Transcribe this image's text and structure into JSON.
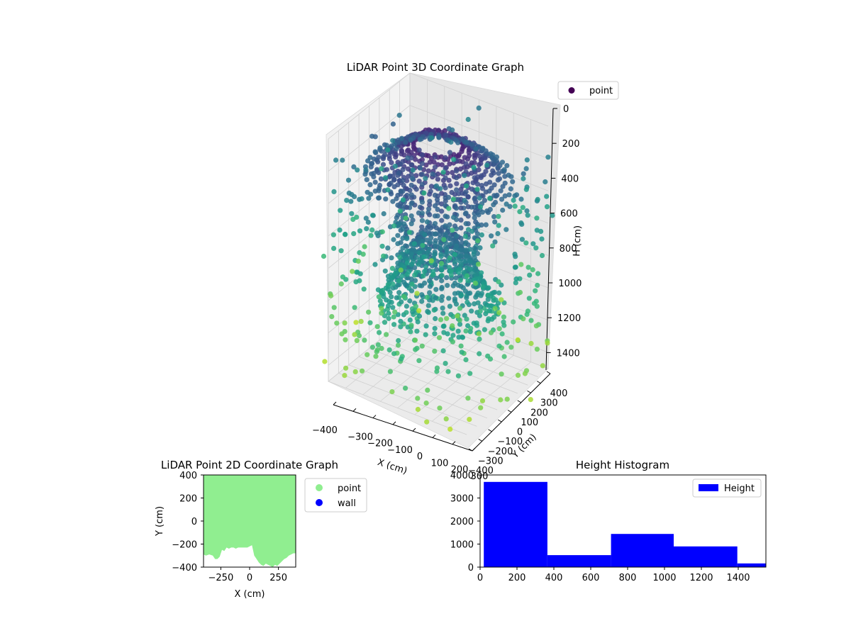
{
  "chart_data": [
    {
      "type": "scatter",
      "projection": "3d",
      "title": "LiDAR Point 3D Coordinate Graph",
      "xlabel": "X (cm)",
      "ylabel": "Y (cm)",
      "zlabel": "H (cm)",
      "x_ticks": [
        "−400",
        "−300",
        "−200",
        "−100",
        "0",
        "100",
        "200",
        "300"
      ],
      "y_ticks": [
        "400",
        "300",
        "200",
        "100",
        "0",
        "−100",
        "−200",
        "−300",
        "−400"
      ],
      "z_ticks": [
        "0",
        "200",
        "400",
        "600",
        "800",
        "1000",
        "1200",
        "1400"
      ],
      "xlim": [
        -400,
        400
      ],
      "ylim": [
        -400,
        400
      ],
      "zlim": [
        0,
        1500
      ],
      "z_inverted": true,
      "colormap": "viridis",
      "legend": {
        "position": "top-right",
        "entries": [
          "point"
        ]
      },
      "legend_marker_color": "#440154",
      "grid": true
    },
    {
      "type": "scatter",
      "title": "LiDAR Point 2D Coordinate Graph",
      "xlabel": "X (cm)",
      "ylabel": "Y (cm)",
      "x_ticks": [
        "−250",
        "0",
        "250"
      ],
      "y_ticks": [
        "400",
        "200",
        "0",
        "−200",
        "−400"
      ],
      "xlim": [
        -400,
        400
      ],
      "ylim": [
        -400,
        400
      ],
      "series": [
        {
          "name": "point",
          "color": "#90ee90"
        },
        {
          "name": "wall",
          "color": "#0000ff"
        }
      ],
      "boundary": {
        "x": [
          -400,
          -380,
          -350,
          -320,
          -300,
          -280,
          -260,
          -240,
          -220,
          -200,
          -180,
          -160,
          -140,
          -120,
          -100,
          -80,
          -60,
          -40,
          -20,
          0,
          20,
          40,
          60,
          80,
          100,
          120,
          140,
          160,
          180,
          200,
          220,
          240,
          260,
          280,
          300,
          320,
          340,
          360,
          380,
          400
        ],
        "y": [
          -290,
          -300,
          -290,
          -300,
          -330,
          -330,
          -310,
          -250,
          -260,
          -230,
          -240,
          -230,
          -230,
          -240,
          -230,
          -230,
          -230,
          -230,
          -230,
          -220,
          -210,
          -300,
          -330,
          -360,
          -380,
          -390,
          -370,
          -380,
          -390,
          -400,
          -380,
          -390,
          -370,
          -350,
          -330,
          -320,
          -300,
          -290,
          -280,
          -280
        ]
      },
      "legend": {
        "position": "outside-right",
        "entries": [
          "point",
          "wall"
        ]
      },
      "grid": false
    },
    {
      "type": "bar",
      "subtype": "histogram",
      "title": "Height Histogram",
      "xlabel": "",
      "ylabel": "",
      "x_ticks": [
        "0",
        "200",
        "400",
        "600",
        "800",
        "1000",
        "1200",
        "1400"
      ],
      "y_ticks": [
        "0",
        "1000",
        "2000",
        "3000",
        "4000"
      ],
      "xlim": [
        0,
        1550
      ],
      "ylim": [
        0,
        4000
      ],
      "series": [
        {
          "name": "Height",
          "color": "#0000ff",
          "bins": [
            [
              20,
              365
            ],
            [
              365,
              710
            ],
            [
              710,
              1050
            ],
            [
              1050,
              1395
            ],
            [
              1395,
              1550
            ]
          ],
          "values": [
            3700,
            520,
            1440,
            900,
            160
          ]
        }
      ],
      "legend": {
        "position": "top-right",
        "entries": [
          "Height"
        ]
      },
      "grid": false
    }
  ]
}
